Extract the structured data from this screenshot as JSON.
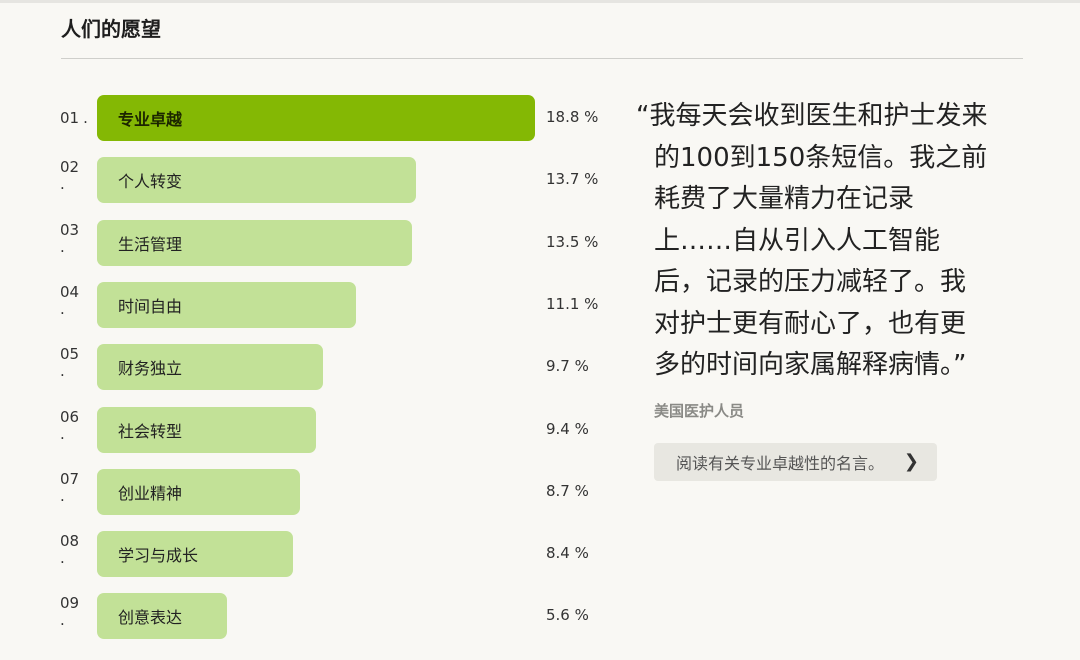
{
  "header": {
    "title": "人们的愿望"
  },
  "chart_data": {
    "type": "bar",
    "orientation": "horizontal",
    "categories": [
      "专业卓越",
      "个人转变",
      "生活管理",
      "时间自由",
      "财务独立",
      "社会转型",
      "创业精神",
      "学习与成长",
      "创意表达"
    ],
    "ranks": [
      "01",
      "02",
      "03",
      "04",
      "05",
      "06",
      "07",
      "08",
      "09"
    ],
    "values": [
      18.8,
      13.7,
      13.5,
      11.1,
      9.7,
      9.4,
      8.7,
      8.4,
      5.6
    ],
    "value_labels": [
      "18.8 %",
      "13.7 %",
      "13.5 %",
      "11.1 %",
      "9.7 %",
      "9.4 %",
      "8.7 %",
      "8.4 %",
      "5.6 %"
    ],
    "unit": "%",
    "colors": {
      "highlight": "#84b804",
      "default": "#c2e197"
    }
  },
  "quote": {
    "lines": [
      "“我每天会收到医生和护士发来",
      "的100到150条短信。我之前",
      "耗费了大量精力在记录",
      "上……自从引入人工智能",
      "后，记录的压力减轻了。我",
      "对护士更有耐心了，也有更",
      "多的时间向家属解释病情。”"
    ],
    "author": "美国医护人员",
    "button_label": "阅读有关专业卓越性的名言。",
    "button_icon": "chevron-right-icon"
  }
}
